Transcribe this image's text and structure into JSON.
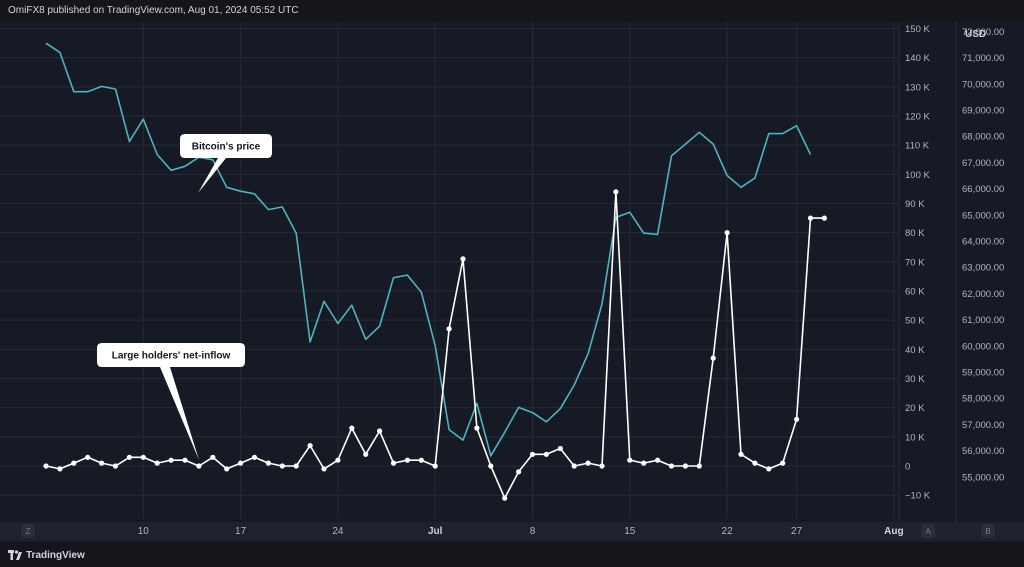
{
  "header": {
    "published_text": "OmiFX8 published on TradingView.com, Aug 01, 2024 05:52 UTC"
  },
  "footer": {
    "brand_name": "TradingView",
    "brand_icon": "tradingview-logo-icon"
  },
  "colors": {
    "background": "#14161b",
    "plot_background": "#161a25",
    "grid": "#252a36",
    "price_line": "#4fb3bf",
    "inflow_line": "#ffffff",
    "axis_text": "#b2b5be",
    "bottom_bar": "#1e222d"
  },
  "chart_data": {
    "type": "line",
    "x_axis": {
      "ticks": [
        "10",
        "17",
        "24",
        "Jul",
        "8",
        "15",
        "22",
        "27",
        "Aug"
      ],
      "left_marker": "Z",
      "right_markers": [
        "A",
        "B"
      ]
    },
    "y_axis_left": {
      "range": [
        -20000,
        150000
      ],
      "ticks": [
        {
          "value": 150000,
          "label": "150 K"
        },
        {
          "value": 140000,
          "label": "140 K"
        },
        {
          "value": 130000,
          "label": "130 K"
        },
        {
          "value": 120000,
          "label": "120 K"
        },
        {
          "value": 110000,
          "label": "110 K"
        },
        {
          "value": 100000,
          "label": "100 K"
        },
        {
          "value": 90000,
          "label": "90 K"
        },
        {
          "value": 80000,
          "label": "80 K"
        },
        {
          "value": 70000,
          "label": "70 K"
        },
        {
          "value": 60000,
          "label": "60 K"
        },
        {
          "value": 50000,
          "label": "50 K"
        },
        {
          "value": 40000,
          "label": "40 K"
        },
        {
          "value": 30000,
          "label": "30 K"
        },
        {
          "value": 20000,
          "label": "20 K"
        },
        {
          "value": 10000,
          "label": "10 K"
        },
        {
          "value": 0,
          "label": "0"
        },
        {
          "value": -10000,
          "label": "−10 K"
        }
      ]
    },
    "y_axis_right": {
      "title": "USD",
      "range": [
        54400,
        72500
      ],
      "ticks": [
        {
          "value": 72000,
          "label": "72,000.00"
        },
        {
          "value": 71000,
          "label": "71,000.00"
        },
        {
          "value": 70000,
          "label": "70,000.00"
        },
        {
          "value": 69000,
          "label": "69,000.00"
        },
        {
          "value": 68000,
          "label": "68,000.00"
        },
        {
          "value": 67000,
          "label": "67,000.00"
        },
        {
          "value": 66000,
          "label": "66,000.00"
        },
        {
          "value": 65000,
          "label": "65,000.00"
        },
        {
          "value": 64000,
          "label": "64,000.00"
        },
        {
          "value": 63000,
          "label": "63,000.00"
        },
        {
          "value": 62000,
          "label": "62,000.00"
        },
        {
          "value": 61000,
          "label": "61,000.00"
        },
        {
          "value": 60000,
          "label": "60,000.00"
        },
        {
          "value": 59000,
          "label": "59,000.00"
        },
        {
          "value": 58000,
          "label": "58,000.00"
        },
        {
          "value": 57000,
          "label": "57,000.00"
        },
        {
          "value": 56000,
          "label": "56,000.00"
        },
        {
          "value": 55000,
          "label": "55,000.00"
        }
      ]
    },
    "series": [
      {
        "name": "Bitcoin's price",
        "axis": "right",
        "color": "#4fb3bf",
        "markers": false,
        "x": [
          3,
          4,
          5,
          6,
          7,
          8,
          9,
          10,
          11,
          12,
          13,
          14,
          15,
          16,
          17,
          18,
          19,
          20,
          21,
          22,
          23,
          24,
          25,
          26,
          27,
          28,
          29,
          30,
          31,
          32,
          33,
          34,
          35,
          36,
          37,
          38,
          39,
          40,
          41,
          42,
          43,
          44,
          45,
          46,
          47,
          48,
          49,
          50,
          51,
          52,
          53,
          54,
          55,
          56,
          57,
          58
        ],
        "values": [
          71550,
          71200,
          69700,
          69700,
          69900,
          69800,
          67800,
          68650,
          67300,
          66700,
          66850,
          67200,
          67100,
          66050,
          65900,
          65800,
          65200,
          65300,
          64300,
          60150,
          61700,
          60850,
          61550,
          60250,
          60750,
          62600,
          62700,
          62050,
          60000,
          56800,
          56400,
          57800,
          55800,
          56700,
          57650,
          57450,
          57100,
          57600,
          58500,
          59700,
          61600,
          64900,
          65100,
          64300,
          64250,
          67250,
          67700,
          68150,
          67700,
          66500,
          66050,
          66400,
          68100,
          68100,
          68400,
          67300
        ]
      },
      {
        "name": "Large holders' net-inflow",
        "axis": "left",
        "color": "#ffffff",
        "markers": true,
        "x": [
          3,
          4,
          5,
          6,
          7,
          8,
          9,
          10,
          11,
          12,
          13,
          14,
          15,
          16,
          17,
          18,
          19,
          20,
          21,
          22,
          23,
          24,
          25,
          26,
          27,
          28,
          29,
          30,
          31,
          32,
          33,
          34,
          35,
          36,
          37,
          38,
          39,
          40,
          41,
          42,
          43,
          44,
          45,
          46,
          47,
          48,
          49,
          50,
          51,
          52,
          53,
          54,
          55,
          56,
          57,
          58,
          59
        ],
        "values": [
          0,
          -1000,
          1000,
          3000,
          1000,
          0,
          3000,
          3000,
          1000,
          2000,
          2000,
          0,
          3000,
          -1000,
          1000,
          3000,
          1000,
          0,
          0,
          7000,
          -1000,
          2000,
          13000,
          4000,
          12000,
          1000,
          2000,
          2000,
          0,
          47000,
          71000,
          13000,
          0,
          -11000,
          -2000,
          4000,
          4000,
          6000,
          0,
          1000,
          0,
          94000,
          2000,
          1000,
          2000,
          0,
          0,
          0,
          37000,
          80000,
          4000,
          1000,
          -1000,
          1000,
          16000,
          85000,
          85000
        ]
      }
    ],
    "annotations": [
      {
        "text": "Bitcoin's price",
        "series": "Bitcoin's price",
        "x": 13
      },
      {
        "text": "Large holders' net-inflow",
        "series": "Large holders' net-inflow",
        "x": 14
      }
    ],
    "grid": true
  }
}
